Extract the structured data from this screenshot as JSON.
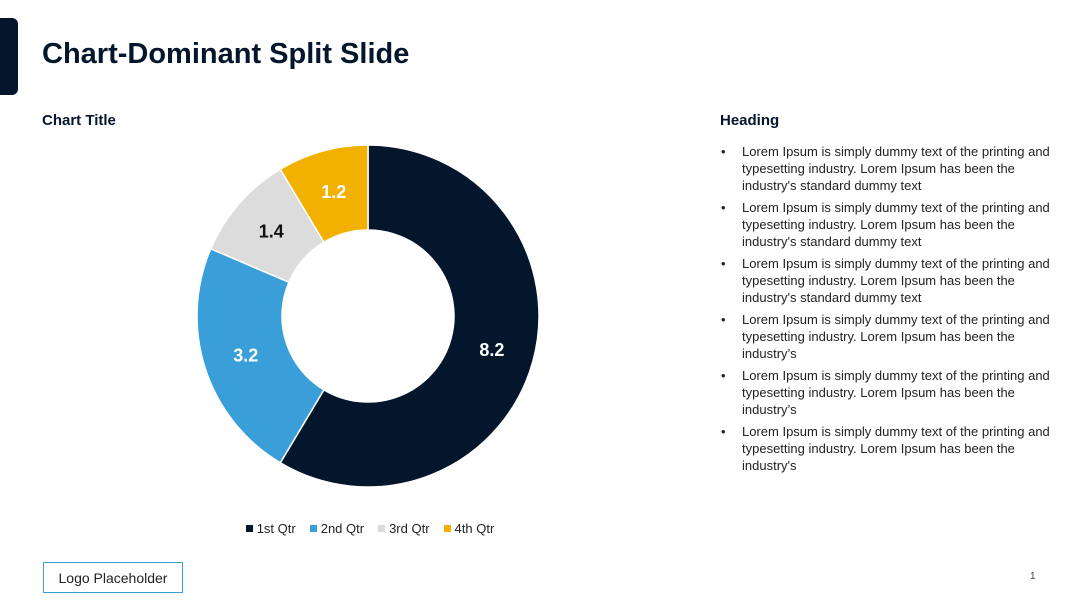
{
  "slide": {
    "title": "Chart-Dominant Split Slide",
    "page_number": "1",
    "logo": "Logo Placeholder"
  },
  "chart_data": {
    "type": "pie",
    "variant": "donut",
    "title": "Chart Title",
    "categories": [
      "1st Qtr",
      "2nd Qtr",
      "3rd Qtr",
      "4th Qtr"
    ],
    "values": [
      8.2,
      3.2,
      1.4,
      1.2
    ],
    "colors": [
      "#03162c",
      "#3a9fd8",
      "#dcdcdc",
      "#f2b000"
    ],
    "label_colors": [
      "#ffffff",
      "#ffffff",
      "#111111",
      "#ffffff"
    ],
    "legend_position": "bottom"
  },
  "text_panel": {
    "heading": "Heading",
    "bullets": [
      "Lorem Ipsum is simply dummy text of the printing and typesetting industry. Lorem Ipsum has been the industry's standard dummy text",
      "Lorem Ipsum is simply dummy text of the printing and typesetting industry. Lorem Ipsum has been the industry's standard dummy text",
      "Lorem Ipsum is simply dummy text of the printing and typesetting industry. Lorem Ipsum has been the industry's standard dummy text",
      "Lorem Ipsum is simply dummy text of the printing and typesetting industry. Lorem Ipsum has been the industry’s",
      "Lorem Ipsum is simply dummy text of the printing and typesetting industry. Lorem Ipsum has been the industry’s",
      "Lorem Ipsum is simply dummy text of the printing and typesetting industry. Lorem Ipsum has been the industry's"
    ]
  }
}
